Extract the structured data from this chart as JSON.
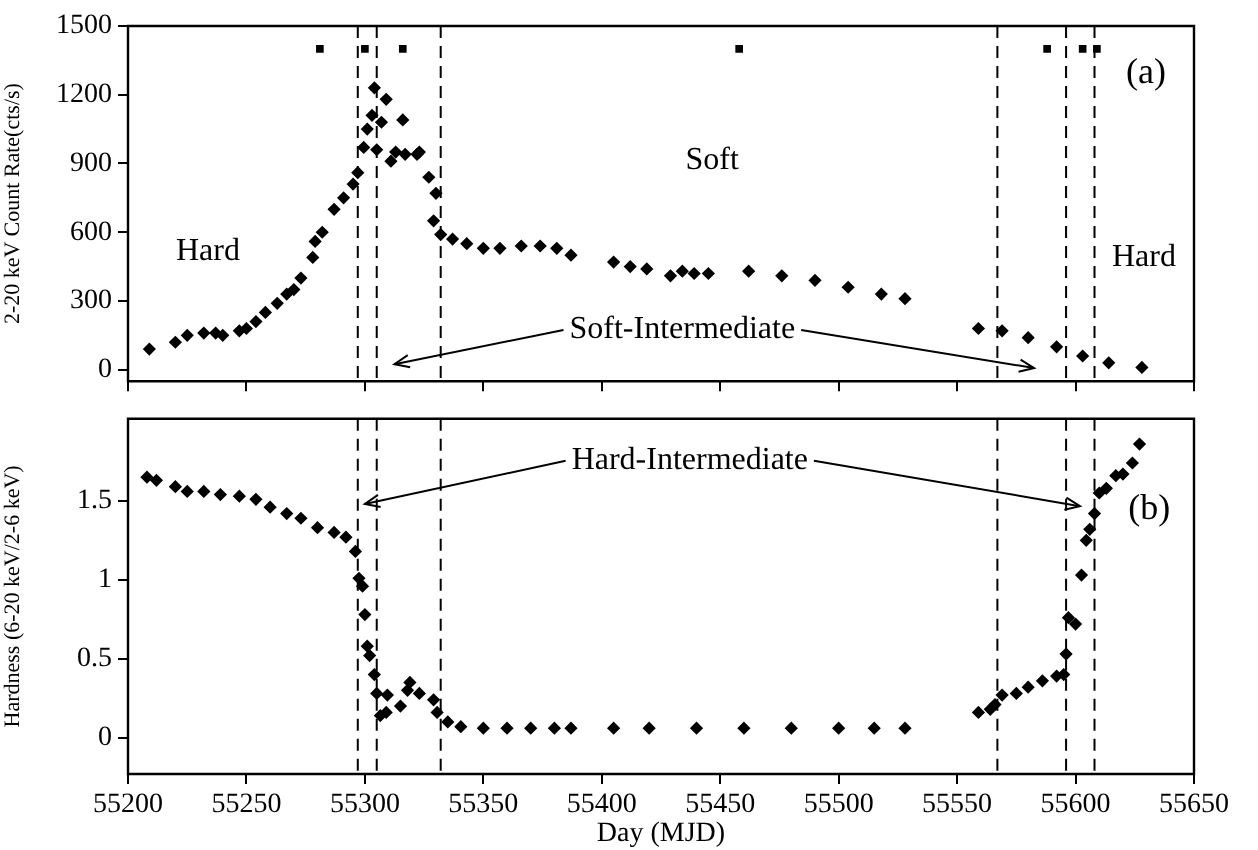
{
  "chart_data": [
    {
      "type": "scatter",
      "ylabel": "2-20 keV Count Rate(cts/s)",
      "xlim": [
        55200,
        55650
      ],
      "xticks": [
        55200,
        55250,
        55300,
        55350,
        55400,
        55450,
        55500,
        55550,
        55600,
        55650
      ],
      "ylim": [
        -50,
        1500
      ],
      "yticks": [
        0,
        300,
        600,
        900,
        1200,
        1500
      ],
      "tick_labels": "y",
      "legend": false,
      "line_style": "dashed",
      "series": [
        {
          "color": "#000000",
          "marker": "diamond",
          "x": [
            55209,
            55220,
            55225,
            55232,
            55237,
            55240,
            55247,
            55250,
            55254,
            55258,
            55263,
            55267,
            55270,
            55273,
            55278,
            55279,
            55282,
            55287,
            55291,
            55295,
            55297,
            55299.5,
            55301,
            55303,
            55304,
            55305,
            55307,
            55309,
            55311,
            55313,
            55316,
            55317,
            55322,
            55323,
            55327,
            55329,
            55330,
            55332,
            55337,
            55343,
            55350,
            55357,
            55366,
            55374,
            55381,
            55387,
            55405,
            55412,
            55419,
            55429,
            55434,
            55439,
            55445,
            55462,
            55476,
            55490,
            55504,
            55518,
            55528,
            55559,
            55569,
            55580,
            55592,
            55603,
            55614,
            55628
          ],
          "values": [
            90,
            120,
            150,
            160,
            160,
            150,
            170,
            180,
            210,
            250,
            290,
            330,
            350,
            400,
            490,
            560,
            600,
            700,
            750,
            810,
            860,
            970,
            1050,
            1110,
            1230,
            960,
            1080,
            1180,
            910,
            950,
            1090,
            940,
            940,
            950,
            840,
            650,
            770,
            590,
            570,
            550,
            530,
            530,
            540,
            540,
            530,
            500,
            470,
            450,
            440,
            410,
            430,
            420,
            420,
            430,
            410,
            390,
            360,
            330,
            310,
            180,
            170,
            140,
            100,
            60,
            30,
            10
          ]
        },
        {
          "color": "#000000",
          "marker": "square",
          "x": [
            55281,
            55300,
            55316,
            55458,
            55588,
            55603,
            55609
          ],
          "values": [
            1400,
            1400,
            1400,
            1400,
            1400,
            1400,
            1400
          ]
        }
      ],
      "ref_lines": [
        {
          "axis": "x",
          "value": 55297
        },
        {
          "axis": "x",
          "value": 55305
        },
        {
          "axis": "x",
          "value": 55332
        },
        {
          "axis": "x",
          "value": 55567
        },
        {
          "axis": "x",
          "value": 55596
        },
        {
          "axis": "x",
          "value": 55608
        }
      ],
      "annotations": [
        "Hard",
        "Soft",
        "Hard",
        "Soft-Intermediate",
        "(a)"
      ]
    },
    {
      "type": "scatter",
      "xlabel": "Day (MJD)",
      "ylabel": "Hardness (6-20 keV/2-6 keV)",
      "xlim": [
        55200,
        55650
      ],
      "xticks": [
        55200,
        55250,
        55300,
        55350,
        55400,
        55450,
        55500,
        55550,
        55600,
        55650
      ],
      "ylim": [
        -0.23,
        2.02
      ],
      "yticks": [
        0,
        0.5,
        1,
        1.5
      ],
      "legend": false,
      "line_style": "dashed",
      "series": [
        {
          "color": "#000000",
          "marker": "diamond",
          "x": [
            55208,
            55212,
            55220,
            55225,
            55232,
            55239,
            55247,
            55254,
            55260,
            55267,
            55273,
            55280,
            55287,
            55292,
            55296,
            55297.5,
            55299,
            55300,
            55301,
            55302,
            55304,
            55305,
            55306.5,
            55309,
            55309.5,
            55315,
            55318,
            55319,
            55323,
            55329,
            55330.5,
            55335,
            55340.5,
            55350,
            55360,
            55370,
            55380,
            55387,
            55405,
            55420,
            55440,
            55460,
            55480,
            55500,
            55515,
            55528,
            55559,
            55564,
            55566,
            55569,
            55575,
            55580,
            55586,
            55592,
            55595,
            55596,
            55597,
            55600,
            55602.5,
            55604.5,
            55606,
            55608,
            55610,
            55613,
            55617,
            55620,
            55624,
            55627
          ],
          "values": [
            1.65,
            1.63,
            1.59,
            1.56,
            1.56,
            1.54,
            1.53,
            1.51,
            1.46,
            1.42,
            1.39,
            1.33,
            1.3,
            1.27,
            1.18,
            1.01,
            0.96,
            0.78,
            0.58,
            0.52,
            0.4,
            0.28,
            0.14,
            0.16,
            0.27,
            0.2,
            0.3,
            0.35,
            0.28,
            0.24,
            0.16,
            0.1,
            0.07,
            0.06,
            0.06,
            0.06,
            0.06,
            0.06,
            0.06,
            0.06,
            0.06,
            0.06,
            0.06,
            0.06,
            0.06,
            0.06,
            0.16,
            0.18,
            0.21,
            0.27,
            0.28,
            0.32,
            0.36,
            0.39,
            0.4,
            0.53,
            0.76,
            0.72,
            1.03,
            1.25,
            1.32,
            1.42,
            1.55,
            1.58,
            1.66,
            1.67,
            1.74,
            1.86
          ]
        }
      ],
      "ref_lines": [
        {
          "axis": "x",
          "value": 55297
        },
        {
          "axis": "x",
          "value": 55305
        },
        {
          "axis": "x",
          "value": 55332
        },
        {
          "axis": "x",
          "value": 55567
        },
        {
          "axis": "x",
          "value": 55596
        },
        {
          "axis": "x",
          "value": 55608
        }
      ],
      "annotations": [
        {
          "text": "Hard-Intermediate",
          "x": 55300,
          "y": 1.48
        },
        "(b)"
      ]
    }
  ]
}
